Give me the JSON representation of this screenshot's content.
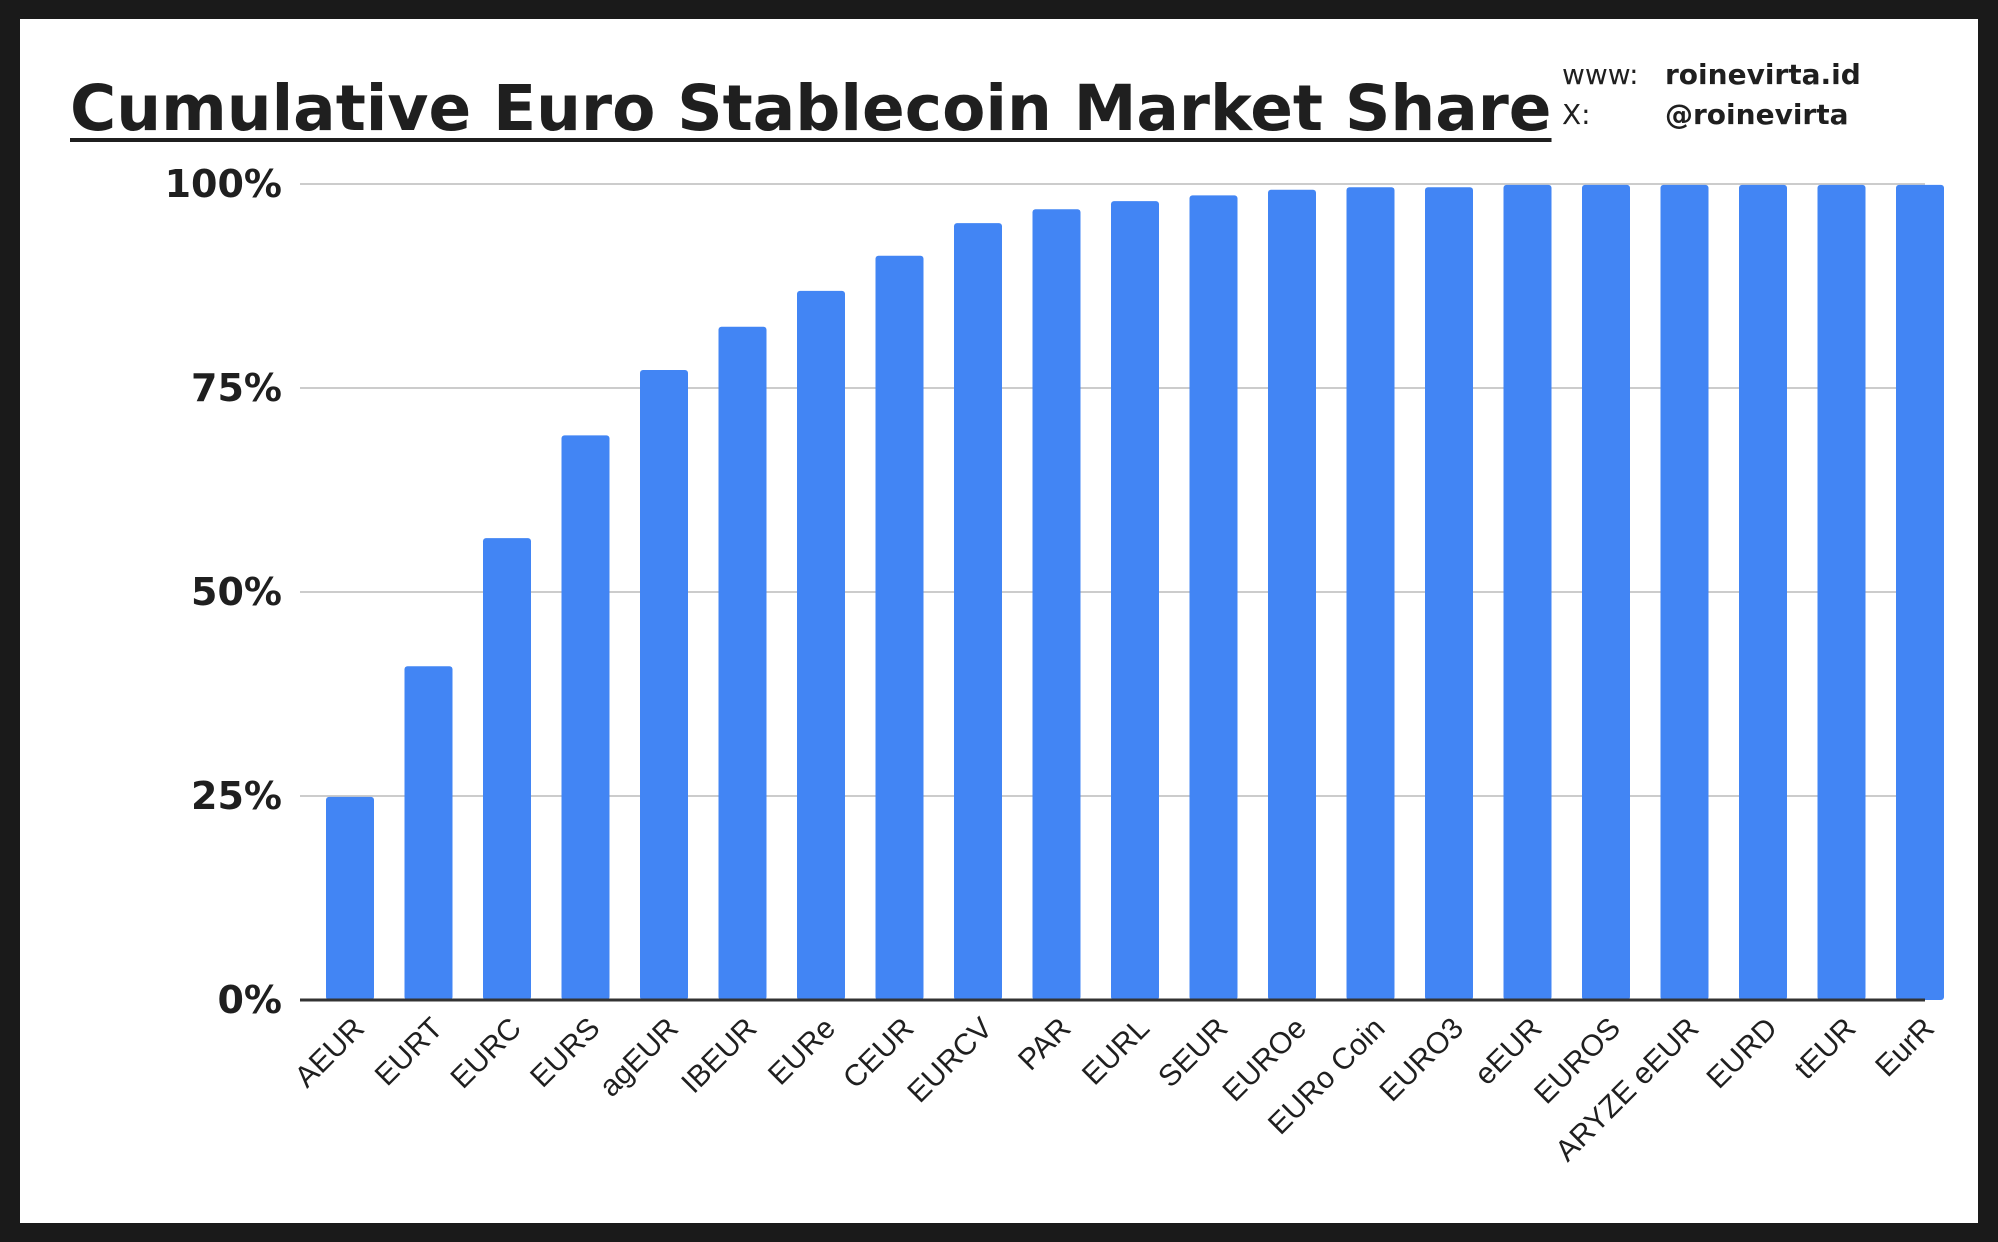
{
  "credits": {
    "www_label": "www:",
    "www_value": "roinevirta.id",
    "x_label": "X:",
    "x_value": "@roinevirta"
  },
  "colors": {
    "bar": "#4285f4",
    "grid": "#cccccc",
    "axis": "#333333",
    "text": "#1f1f1f"
  },
  "chart_data": {
    "type": "bar",
    "title": "Cumulative Euro Stablecoin Market Share",
    "xlabel": "",
    "ylabel": "",
    "ylim": [
      0,
      100
    ],
    "yticks": [
      0,
      25,
      50,
      75,
      100
    ],
    "ytick_labels": [
      "0%",
      "25%",
      "50%",
      "75%",
      "100%"
    ],
    "grid": true,
    "legend": "none",
    "categories": [
      "AEUR",
      "EURT",
      "EURC",
      "EURS",
      "agEUR",
      "IBEUR",
      "EURe",
      "CEUR",
      "EURCV",
      "PAR",
      "EURL",
      "SEUR",
      "EUROe",
      "EURo Coin",
      "EURO3",
      "eEUR",
      "EUROS",
      "ARYZE eEUR",
      "EURD",
      "tEUR",
      "EurR"
    ],
    "values": [
      24.9,
      40.9,
      56.6,
      69.2,
      77.2,
      82.5,
      86.9,
      91.2,
      95.2,
      96.9,
      97.9,
      98.6,
      99.3,
      99.6,
      99.6,
      99.9,
      99.9,
      99.9,
      99.9,
      99.9,
      99.9
    ]
  }
}
